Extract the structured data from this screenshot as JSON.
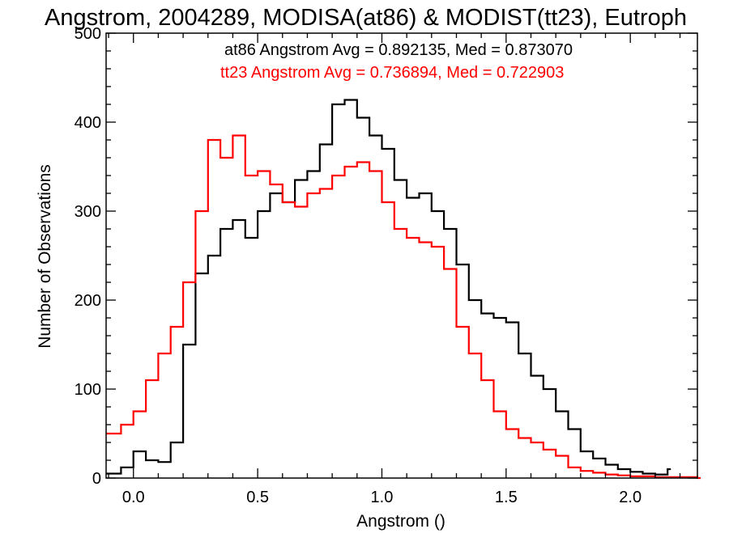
{
  "chart_data": {
    "type": "line",
    "title": "Angstrom, 2004289, MODISA(at86) & MODIST(tt23), Eutroph",
    "xlabel": "Angstrom ()",
    "ylabel": "Number of Observations",
    "xlim": [
      -0.11,
      2.27
    ],
    "ylim": [
      0,
      500
    ],
    "xticks": [
      0.0,
      0.5,
      1.0,
      1.5,
      2.0
    ],
    "xtick_labels": [
      "0.0",
      "0.5",
      "1.0",
      "1.5",
      "2.0"
    ],
    "yticks": [
      0,
      100,
      200,
      300,
      400,
      500
    ],
    "ytick_labels": [
      "0",
      "100",
      "200",
      "300",
      "400",
      "500"
    ],
    "grid": false,
    "legend_position": "top-right",
    "series": [
      {
        "name": "at86",
        "color": "#000000",
        "x": [
          -0.11,
          -0.05,
          0.0,
          0.05,
          0.1,
          0.15,
          0.2,
          0.25,
          0.3,
          0.35,
          0.4,
          0.45,
          0.5,
          0.55,
          0.6,
          0.65,
          0.7,
          0.75,
          0.8,
          0.85,
          0.9,
          0.95,
          1.0,
          1.05,
          1.1,
          1.15,
          1.2,
          1.25,
          1.3,
          1.35,
          1.4,
          1.45,
          1.5,
          1.55,
          1.6,
          1.65,
          1.7,
          1.75,
          1.8,
          1.85,
          1.9,
          1.95,
          2.0,
          2.05,
          2.1,
          2.15
        ],
        "y": [
          5,
          12,
          30,
          20,
          18,
          40,
          150,
          230,
          250,
          280,
          290,
          270,
          300,
          320,
          310,
          335,
          345,
          375,
          420,
          425,
          405,
          385,
          370,
          335,
          315,
          320,
          300,
          280,
          240,
          200,
          185,
          180,
          175,
          140,
          115,
          100,
          75,
          55,
          30,
          22,
          15,
          10,
          7,
          5,
          4,
          10
        ]
      },
      {
        "name": "tt23",
        "color": "#ff0000",
        "x": [
          -0.11,
          -0.05,
          0.0,
          0.05,
          0.1,
          0.15,
          0.2,
          0.25,
          0.3,
          0.35,
          0.4,
          0.45,
          0.5,
          0.55,
          0.6,
          0.65,
          0.7,
          0.75,
          0.8,
          0.85,
          0.9,
          0.95,
          1.0,
          1.05,
          1.1,
          1.15,
          1.2,
          1.25,
          1.3,
          1.35,
          1.4,
          1.45,
          1.5,
          1.55,
          1.6,
          1.65,
          1.7,
          1.75,
          1.8,
          1.85,
          1.9,
          1.95,
          2.0,
          2.05,
          2.1,
          2.15,
          2.2,
          2.27
        ],
        "y": [
          50,
          60,
          75,
          110,
          140,
          170,
          220,
          300,
          380,
          360,
          385,
          340,
          345,
          330,
          310,
          305,
          320,
          325,
          340,
          350,
          355,
          345,
          310,
          280,
          270,
          265,
          260,
          235,
          170,
          140,
          110,
          75,
          55,
          45,
          40,
          32,
          25,
          12,
          8,
          6,
          4,
          3,
          2,
          2,
          1,
          1,
          1,
          0
        ]
      }
    ],
    "annotations": [
      {
        "text": "at86 Angstrom Avg = 0.892135, Med = 0.873070",
        "color": "#000000"
      },
      {
        "text": "tt23 Angstrom Avg = 0.736894, Med = 0.722903",
        "color": "#ff0000"
      }
    ]
  }
}
